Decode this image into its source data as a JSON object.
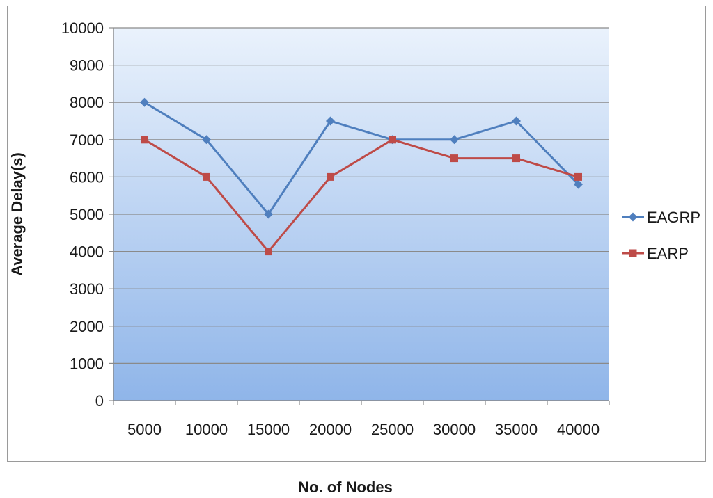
{
  "chart_data": {
    "type": "line",
    "title": "",
    "xlabel": "No. of Nodes",
    "ylabel": "Average Delay(s)",
    "categories": [
      "5000",
      "10000",
      "15000",
      "20000",
      "25000",
      "30000",
      "35000",
      "40000"
    ],
    "ylim": [
      0,
      10000
    ],
    "yticks": [
      0,
      1000,
      2000,
      3000,
      4000,
      5000,
      6000,
      7000,
      8000,
      9000,
      10000
    ],
    "grid": true,
    "legend_position": "right",
    "series": [
      {
        "name": "EAGRP",
        "values": [
          8000,
          7000,
          5000,
          7500,
          7000,
          7000,
          7500,
          5800
        ],
        "color": "#4f7fbe",
        "marker": "diamond"
      },
      {
        "name": "EARP",
        "values": [
          7000,
          6000,
          4000,
          6000,
          7000,
          6500,
          6500,
          6000
        ],
        "color": "#be4b48",
        "marker": "square"
      }
    ],
    "plot_background": {
      "top": "#eaf2fc",
      "bottom": "#8fb5e9"
    }
  }
}
